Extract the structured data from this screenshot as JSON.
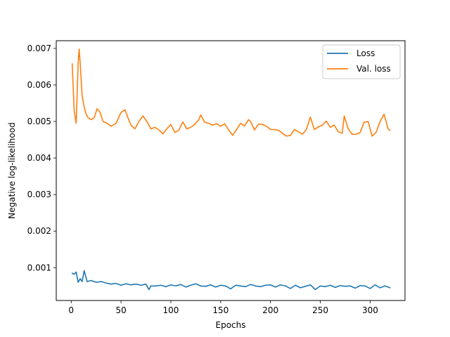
{
  "chart_data": {
    "type": "line",
    "xlabel": "Epochs",
    "ylabel": "Negative log-likelihood",
    "xlim": [
      -15,
      335
    ],
    "ylim": [
      0.000102,
      0.00721
    ],
    "xticks": [
      0,
      50,
      100,
      150,
      200,
      250,
      300
    ],
    "yticks": [
      0.001,
      0.002,
      0.003,
      0.004,
      0.005,
      0.006,
      0.007
    ],
    "ytick_labels": [
      "0.001",
      "0.002",
      "0.003",
      "0.004",
      "0.005",
      "0.006",
      "0.007"
    ],
    "grid": false,
    "legend_position": "top-right",
    "series": [
      {
        "name": "Loss",
        "color": "#1f77b4",
        "x": [
          1,
          3,
          5,
          7,
          9,
          11,
          13,
          16,
          20,
          25,
          30,
          35,
          40,
          45,
          50,
          55,
          60,
          65,
          70,
          75,
          78,
          80,
          85,
          90,
          95,
          100,
          105,
          110,
          115,
          120,
          125,
          130,
          135,
          140,
          145,
          150,
          155,
          160,
          165,
          170,
          175,
          180,
          185,
          190,
          195,
          200,
          205,
          210,
          215,
          220,
          225,
          230,
          235,
          240,
          245,
          250,
          255,
          260,
          265,
          270,
          275,
          280,
          285,
          290,
          295,
          300,
          305,
          310,
          315,
          320
        ],
        "y": [
          0.00085,
          0.00082,
          0.00088,
          0.0006,
          0.0007,
          0.00062,
          0.00092,
          0.00062,
          0.00065,
          0.0006,
          0.00062,
          0.00058,
          0.00055,
          0.00057,
          0.00052,
          0.00056,
          0.00053,
          0.00055,
          0.00052,
          0.00055,
          0.0004,
          0.0005,
          0.0005,
          0.00052,
          0.00048,
          0.00053,
          0.0005,
          0.00054,
          0.00047,
          0.00052,
          0.00056,
          0.0005,
          0.00049,
          0.00053,
          0.00047,
          0.00052,
          0.0005,
          0.00042,
          0.00052,
          0.0005,
          0.00048,
          0.00054,
          0.0005,
          0.00048,
          0.00052,
          0.00053,
          0.00047,
          0.00053,
          0.0005,
          0.00043,
          0.00052,
          0.00045,
          0.00049,
          0.00053,
          0.0004,
          0.0005,
          0.00048,
          0.00052,
          0.00046,
          0.00051,
          0.00049,
          0.0005,
          0.00044,
          0.00051,
          0.0005,
          0.00043,
          0.00053,
          0.00045,
          0.0005,
          0.00045
        ]
      },
      {
        "name": "Val. loss",
        "color": "#ff7f0e",
        "x": [
          1,
          3,
          5,
          7,
          8,
          9,
          11,
          13,
          15,
          17,
          20,
          23,
          26,
          29,
          32,
          36,
          40,
          45,
          50,
          54,
          57,
          60,
          64,
          68,
          72,
          76,
          80,
          84,
          88,
          92,
          96,
          100,
          104,
          108,
          112,
          116,
          120,
          124,
          128,
          130,
          134,
          138,
          142,
          146,
          150,
          154,
          158,
          162,
          166,
          170,
          174,
          178,
          180,
          184,
          188,
          192,
          196,
          200,
          204,
          208,
          212,
          216,
          220,
          224,
          228,
          232,
          236,
          240,
          244,
          248,
          252,
          256,
          260,
          264,
          268,
          272,
          274,
          278,
          282,
          286,
          290,
          294,
          298,
          302,
          306,
          310,
          314,
          318,
          320
        ],
        "y": [
          0.00658,
          0.0053,
          0.00495,
          0.0066,
          0.00698,
          0.0066,
          0.0057,
          0.0054,
          0.0052,
          0.0051,
          0.00505,
          0.0051,
          0.00535,
          0.00525,
          0.005,
          0.00495,
          0.00487,
          0.00495,
          0.00525,
          0.00532,
          0.0051,
          0.0049,
          0.0048,
          0.005,
          0.00515,
          0.005,
          0.0048,
          0.00484,
          0.00477,
          0.00466,
          0.0048,
          0.00492,
          0.0047,
          0.00476,
          0.00499,
          0.0048,
          0.00484,
          0.00492,
          0.00504,
          0.00518,
          0.00498,
          0.00495,
          0.0049,
          0.00494,
          0.00487,
          0.00494,
          0.00477,
          0.00462,
          0.00478,
          0.00495,
          0.00488,
          0.00505,
          0.005,
          0.00477,
          0.00493,
          0.00492,
          0.00487,
          0.00478,
          0.00478,
          0.00476,
          0.00468,
          0.0046,
          0.00462,
          0.00478,
          0.00472,
          0.00465,
          0.00478,
          0.00512,
          0.00478,
          0.00485,
          0.0049,
          0.00501,
          0.00484,
          0.0049,
          0.00472,
          0.00468,
          0.00515,
          0.0048,
          0.00465,
          0.00465,
          0.0047,
          0.00498,
          0.005,
          0.0046,
          0.0047,
          0.005,
          0.0052,
          0.0048,
          0.00475
        ]
      }
    ]
  }
}
